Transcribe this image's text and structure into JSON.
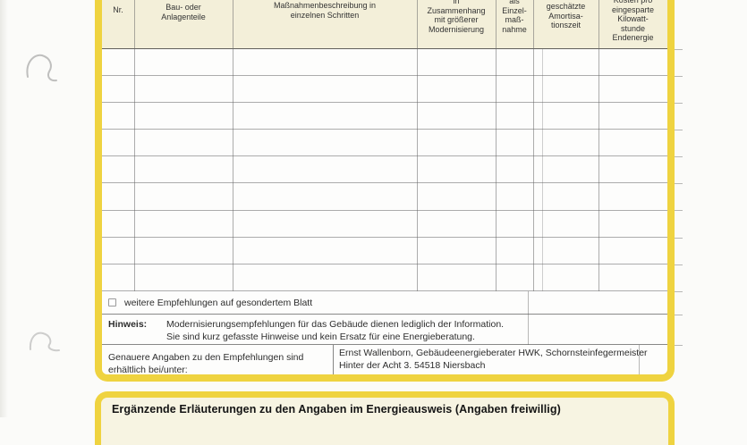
{
  "colors": {
    "accent_yellow": "#efd340",
    "header_background": "#f3efd9",
    "section_background": "#f7f4e2",
    "paper": "#fbfbf9"
  },
  "table": {
    "columns": [
      {
        "label": "Nr."
      },
      {
        "label": "Bau- oder\nAnlagenteile"
      },
      {
        "label": "Maßnahmenbeschreibung in\neinzelnen Schritten"
      },
      {
        "label": "in\nZusammenhang\nmit größerer\nModernisierung"
      },
      {
        "label": "als\nEinzel-\nmaß-\nnahme"
      },
      {
        "label": "geschätzte\nAmortisa-\ntionszeit"
      },
      {
        "label": "Kosten pro\neingesparte\nKilowatt-\nstunde\nEndenergie"
      }
    ],
    "empty_rows": 9,
    "footer": {
      "more_recommendations": {
        "checked": false,
        "label": "weitere Empfehlungen auf gesondertem Blatt"
      },
      "note": {
        "label": "Hinweis:",
        "text": "Modernisierungsempfehlungen für das Gebäude dienen lediglich der Information.\nSie sind kurz gefasste Hinweise und kein Ersatz für eine Energieberatung."
      },
      "details": {
        "label": "Genauere Angaben zu den Empfehlungen sind\nerhältlich bei/unter:",
        "contact": "Ernst Wallenborn, Gebäudeenergieberater HWK, Schornsteinfegermeister\nHinter der Acht 3. 54518 Niersbach"
      }
    }
  },
  "bottom_section": {
    "title": "Ergänzende Erläuterungen zu den Angaben im Energieausweis (Angaben freiwillig)"
  }
}
